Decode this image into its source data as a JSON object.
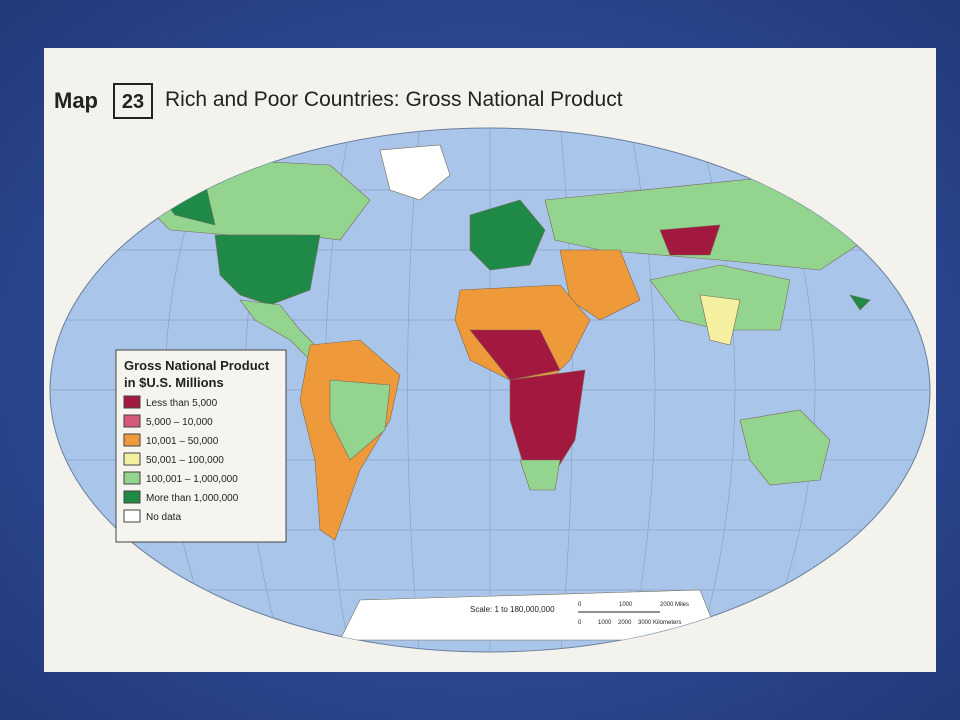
{
  "header": {
    "map_word": "Map",
    "number": "23",
    "title": "Rich and Poor Countries: Gross National Product"
  },
  "legend": {
    "title_line1": "Gross National Product",
    "title_line2": "in $U.S. Millions",
    "items": [
      {
        "label": "Less than 5,000",
        "color": "#a3183f"
      },
      {
        "label": "5,000 – 10,000",
        "color": "#d6587a"
      },
      {
        "label": "10,001 – 50,000",
        "color": "#ee9a3a"
      },
      {
        "label": "50,001 – 100,000",
        "color": "#f4f0a0"
      },
      {
        "label": "100,001 – 1,000,000",
        "color": "#93d48e"
      },
      {
        "label": "More than 1,000,000",
        "color": "#1f8a48"
      },
      {
        "label": "No data",
        "color": "#ffffff"
      }
    ]
  },
  "scale": {
    "text": "Scale: 1 to 180,000,000",
    "miles": [
      "0",
      "1000",
      "2000 Miles"
    ],
    "km": [
      "0",
      "1000",
      "2000",
      "3000 Kilometers"
    ]
  }
}
